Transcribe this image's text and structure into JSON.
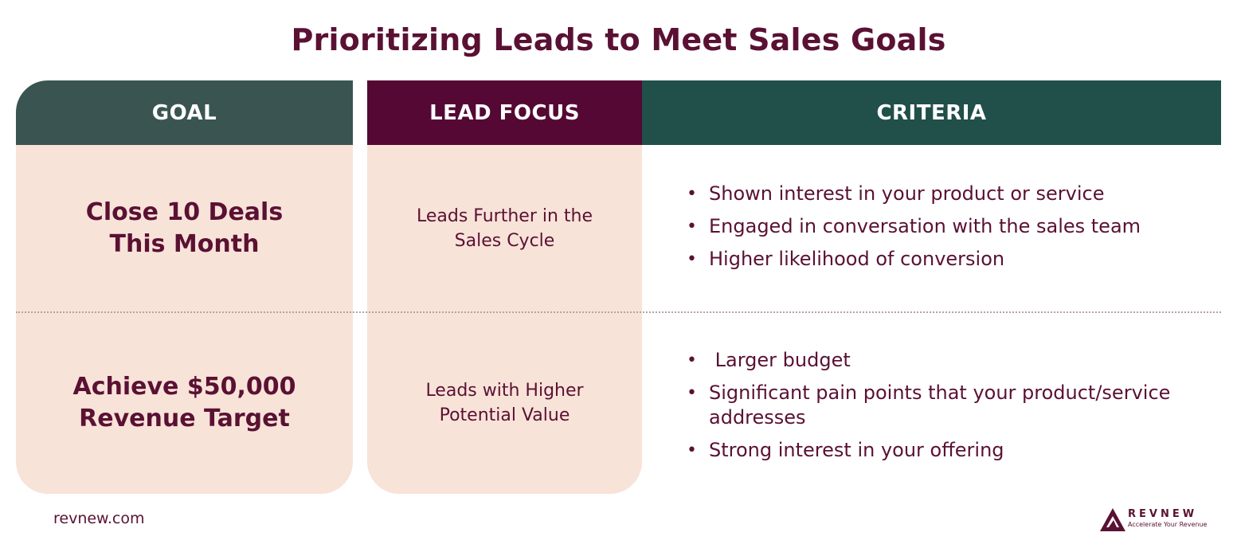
{
  "title": "Prioritizing Leads to Meet Sales Goals",
  "columns": {
    "goal": "GOAL",
    "lead_focus": "LEAD FOCUS",
    "criteria": "CRITERIA"
  },
  "rows": [
    {
      "goal_line1": "Close 10 Deals",
      "goal_line2": "This Month",
      "focus_line1": "Leads Further in the",
      "focus_line2": "Sales Cycle",
      "criteria": [
        "Shown interest in your product or service",
        "Engaged in conversation with the sales team",
        "Higher likelihood of conversion"
      ]
    },
    {
      "goal_line1": "Achieve $50,000",
      "goal_line2": "Revenue Target",
      "focus_line1": "Leads with Higher",
      "focus_line2": "Potential Value",
      "criteria": [
        " Larger budget",
        "Significant pain points that your product/service addresses",
        "Strong interest in your offering"
      ]
    }
  ],
  "footer": {
    "site": "revnew.com",
    "logo_name": "REVNEW",
    "logo_tagline": "Accelerate Your Revenue"
  },
  "colors": {
    "title": "#5a1133",
    "goal_header": "#3a5551",
    "focus_header": "#550833",
    "criteria_header": "#214f49",
    "cell_background": "#f8e3d8"
  }
}
